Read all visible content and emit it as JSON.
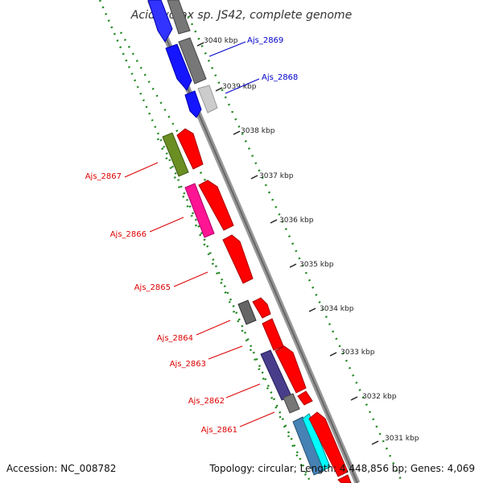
{
  "title": "Acidovorax sp. JS42, complete genome",
  "footer": {
    "accession": "Accession: NC_008782",
    "topology": "Topology: circular; Length: 4,448,856 bp; Genes: 4,069"
  },
  "kbp_ticks": [
    "3040 kbp",
    "3039 kbp",
    "3038 kbp",
    "3037 kbp",
    "3036 kbp",
    "3035 kbp",
    "3034 kbp",
    "3033 kbp",
    "3032 kbp",
    "3031 kbp"
  ],
  "colors": {
    "blue_label": "#0000cc",
    "red_label": "#dd0000",
    "backbone": "#888888",
    "dotted_track": "#228822"
  },
  "genes_blue": [
    {
      "id": "Ajs_2869",
      "label": "Ajs_2869",
      "color": "#0000ff"
    },
    {
      "id": "Ajs_2868",
      "label": "Ajs_2868",
      "color": "#0000ff"
    }
  ],
  "genes_red": [
    {
      "id": "Ajs_2867",
      "label": "Ajs_2867"
    },
    {
      "id": "Ajs_2866",
      "label": "Ajs_2866"
    },
    {
      "id": "Ajs_2865",
      "label": "Ajs_2865"
    },
    {
      "id": "Ajs_2864",
      "label": "Ajs_2864"
    },
    {
      "id": "Ajs_2863",
      "label": "Ajs_2863"
    },
    {
      "id": "Ajs_2862",
      "label": "Ajs_2862"
    },
    {
      "id": "Ajs_2861",
      "label": "Ajs_2861"
    }
  ]
}
